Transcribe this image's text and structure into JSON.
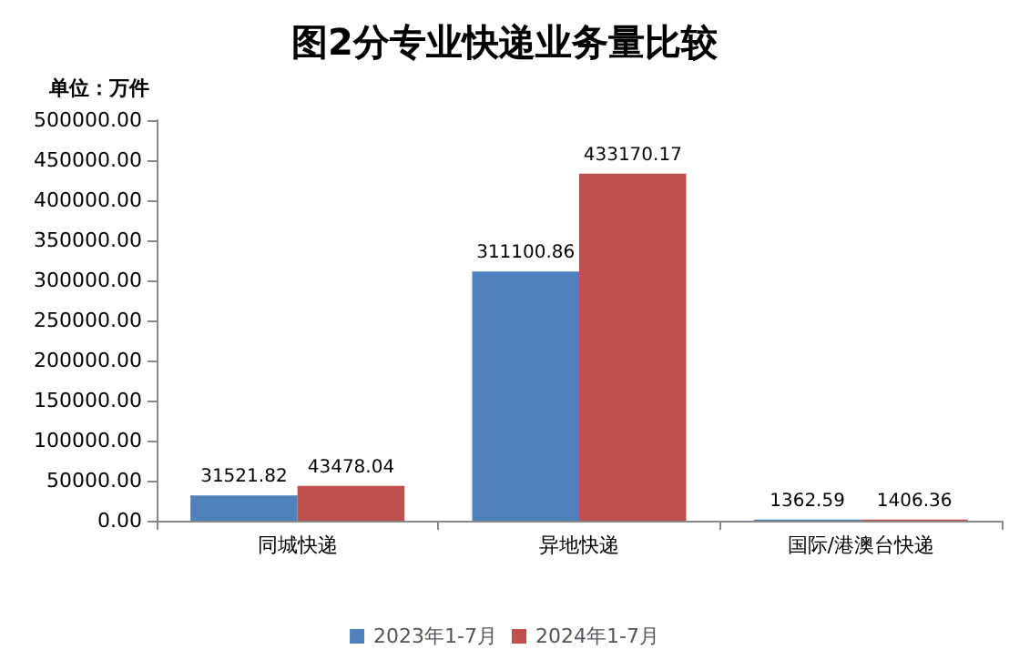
{
  "chart_data": {
    "type": "bar",
    "title": "图2分专业快递业务量比较",
    "ylabel": "单位：万件",
    "categories": [
      "同城快递",
      "异地快递",
      "国际/港澳台快递"
    ],
    "series": [
      {
        "name": "2023年1-7月",
        "color": "#4f81bd",
        "values": [
          31521.82,
          311100.86,
          1362.59
        ]
      },
      {
        "name": "2024年1-7月",
        "color": "#c0504d",
        "values": [
          43478.04,
          433170.17,
          1406.36
        ]
      }
    ],
    "ylim": [
      0,
      500000
    ],
    "yticks": [
      {
        "value": 0,
        "label": "0.00"
      },
      {
        "value": 50000,
        "label": "50000.00"
      },
      {
        "value": 100000,
        "label": "100000.00"
      },
      {
        "value": 150000,
        "label": "150000.00"
      },
      {
        "value": 200000,
        "label": "200000.00"
      },
      {
        "value": 250000,
        "label": "250000.00"
      },
      {
        "value": 300000,
        "label": "300000.00"
      },
      {
        "value": 350000,
        "label": "350000.00"
      },
      {
        "value": 400000,
        "label": "400000.00"
      },
      {
        "value": 450000,
        "label": "450000.00"
      },
      {
        "value": 500000,
        "label": "500000.00"
      }
    ],
    "grid": false,
    "legend": "bottom",
    "data_labels": true
  }
}
